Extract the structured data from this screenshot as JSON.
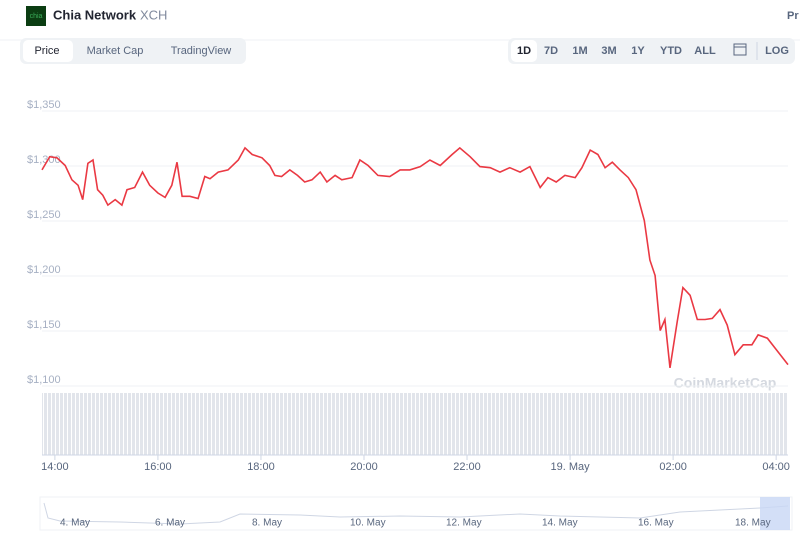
{
  "header": {
    "logo": "chia",
    "name": "Chia Network",
    "symbol": "XCH",
    "right": "Pr"
  },
  "tabs": [
    "Price",
    "Market Cap",
    "TradingView"
  ],
  "ranges": [
    "1D",
    "7D",
    "1M",
    "3M",
    "1Y",
    "YTD",
    "ALL"
  ],
  "log": "LOG",
  "watermark": "CoinMarketCap",
  "navigator": {
    "labels": [
      "4. May",
      "6. May",
      "8. May",
      "10. May",
      "12. May",
      "14. May",
      "16. May",
      "18. May"
    ]
  },
  "chart_data": {
    "type": "line",
    "series": [
      {
        "name": "Price",
        "color": "#ea3943",
        "x": [
          -0.25,
          -0.1,
          0.04,
          0.2,
          0.33,
          0.45,
          0.54,
          0.64,
          0.74,
          0.83,
          0.93,
          1.03,
          1.17,
          1.3,
          1.4,
          1.55,
          1.7,
          1.84,
          2,
          2.14,
          2.27,
          2.37,
          2.47,
          2.62,
          2.78,
          2.91,
          3.01,
          3.17,
          3.36,
          3.56,
          3.69,
          3.83,
          4.02,
          4.17,
          4.27,
          4.4,
          4.56,
          4.71,
          4.85,
          4.99,
          5.15,
          5.28,
          5.44,
          5.57,
          5.77,
          5.92,
          6.08,
          6.27,
          6.5,
          6.7,
          6.89,
          7.09,
          7.28,
          7.48,
          7.71,
          7.86,
          8.06,
          8.25,
          8.45,
          8.64,
          8.83,
          9.03,
          9.22,
          9.42,
          9.57,
          9.73,
          9.9,
          10.1,
          10.23,
          10.39,
          10.54,
          10.68,
          10.82,
          10.97,
          11.13,
          11.28,
          11.44,
          11.55,
          11.65,
          11.75,
          11.84,
          11.94,
          12.08,
          12.19,
          12.33,
          12.47,
          12.62,
          12.76,
          12.91,
          13.05,
          13.2,
          13.36,
          13.53,
          13.65,
          13.83,
          13.98,
          14.23
        ],
        "values": [
          1291,
          1303,
          1302,
          1295,
          1282,
          1277,
          1264,
          1297,
          1300,
          1273,
          1268,
          1259,
          1264,
          1259,
          1273,
          1275,
          1289,
          1277,
          1270,
          1266,
          1277,
          1298,
          1267,
          1267,
          1265,
          1285,
          1283,
          1289,
          1291,
          1300,
          1311,
          1305,
          1302,
          1295,
          1286,
          1285,
          1291,
          1286,
          1280,
          1282,
          1289,
          1280,
          1286,
          1282,
          1284,
          1300,
          1295,
          1286,
          1285,
          1291,
          1291,
          1294,
          1300,
          1295,
          1305,
          1311,
          1303,
          1294,
          1293,
          1289,
          1293,
          1289,
          1294,
          1275,
          1284,
          1280,
          1286,
          1284,
          1293,
          1309,
          1305,
          1293,
          1298,
          1291,
          1284,
          1273,
          1245,
          1209,
          1195,
          1145,
          1155,
          1111,
          1153,
          1184,
          1177,
          1155,
          1155,
          1156,
          1164,
          1150,
          1123,
          1132,
          1132,
          1141,
          1138,
          1129,
          1114
        ]
      }
    ],
    "xlim": [
      -0.25,
      14.23
    ],
    "xticks": [
      {
        "value": 0,
        "label": "14:00"
      },
      {
        "value": 2,
        "label": "16:00"
      },
      {
        "value": 4,
        "label": "18:00"
      },
      {
        "value": 6,
        "label": "20:00"
      },
      {
        "value": 8,
        "label": "22:00"
      },
      {
        "value": 10,
        "label": "19. May"
      },
      {
        "value": 12,
        "label": "02:00"
      },
      {
        "value": 14,
        "label": "04:00"
      }
    ],
    "ylim": [
      1100,
      1350
    ],
    "yticks": [
      {
        "value": 1100,
        "label": "$1,100"
      },
      {
        "value": 1150,
        "label": "$1,150"
      },
      {
        "value": 1200,
        "label": "$1,200"
      },
      {
        "value": 1250,
        "label": "$1,250"
      },
      {
        "value": 1300,
        "label": "$1,300"
      },
      {
        "value": 1350,
        "label": "$1,350"
      }
    ],
    "grid": true
  }
}
